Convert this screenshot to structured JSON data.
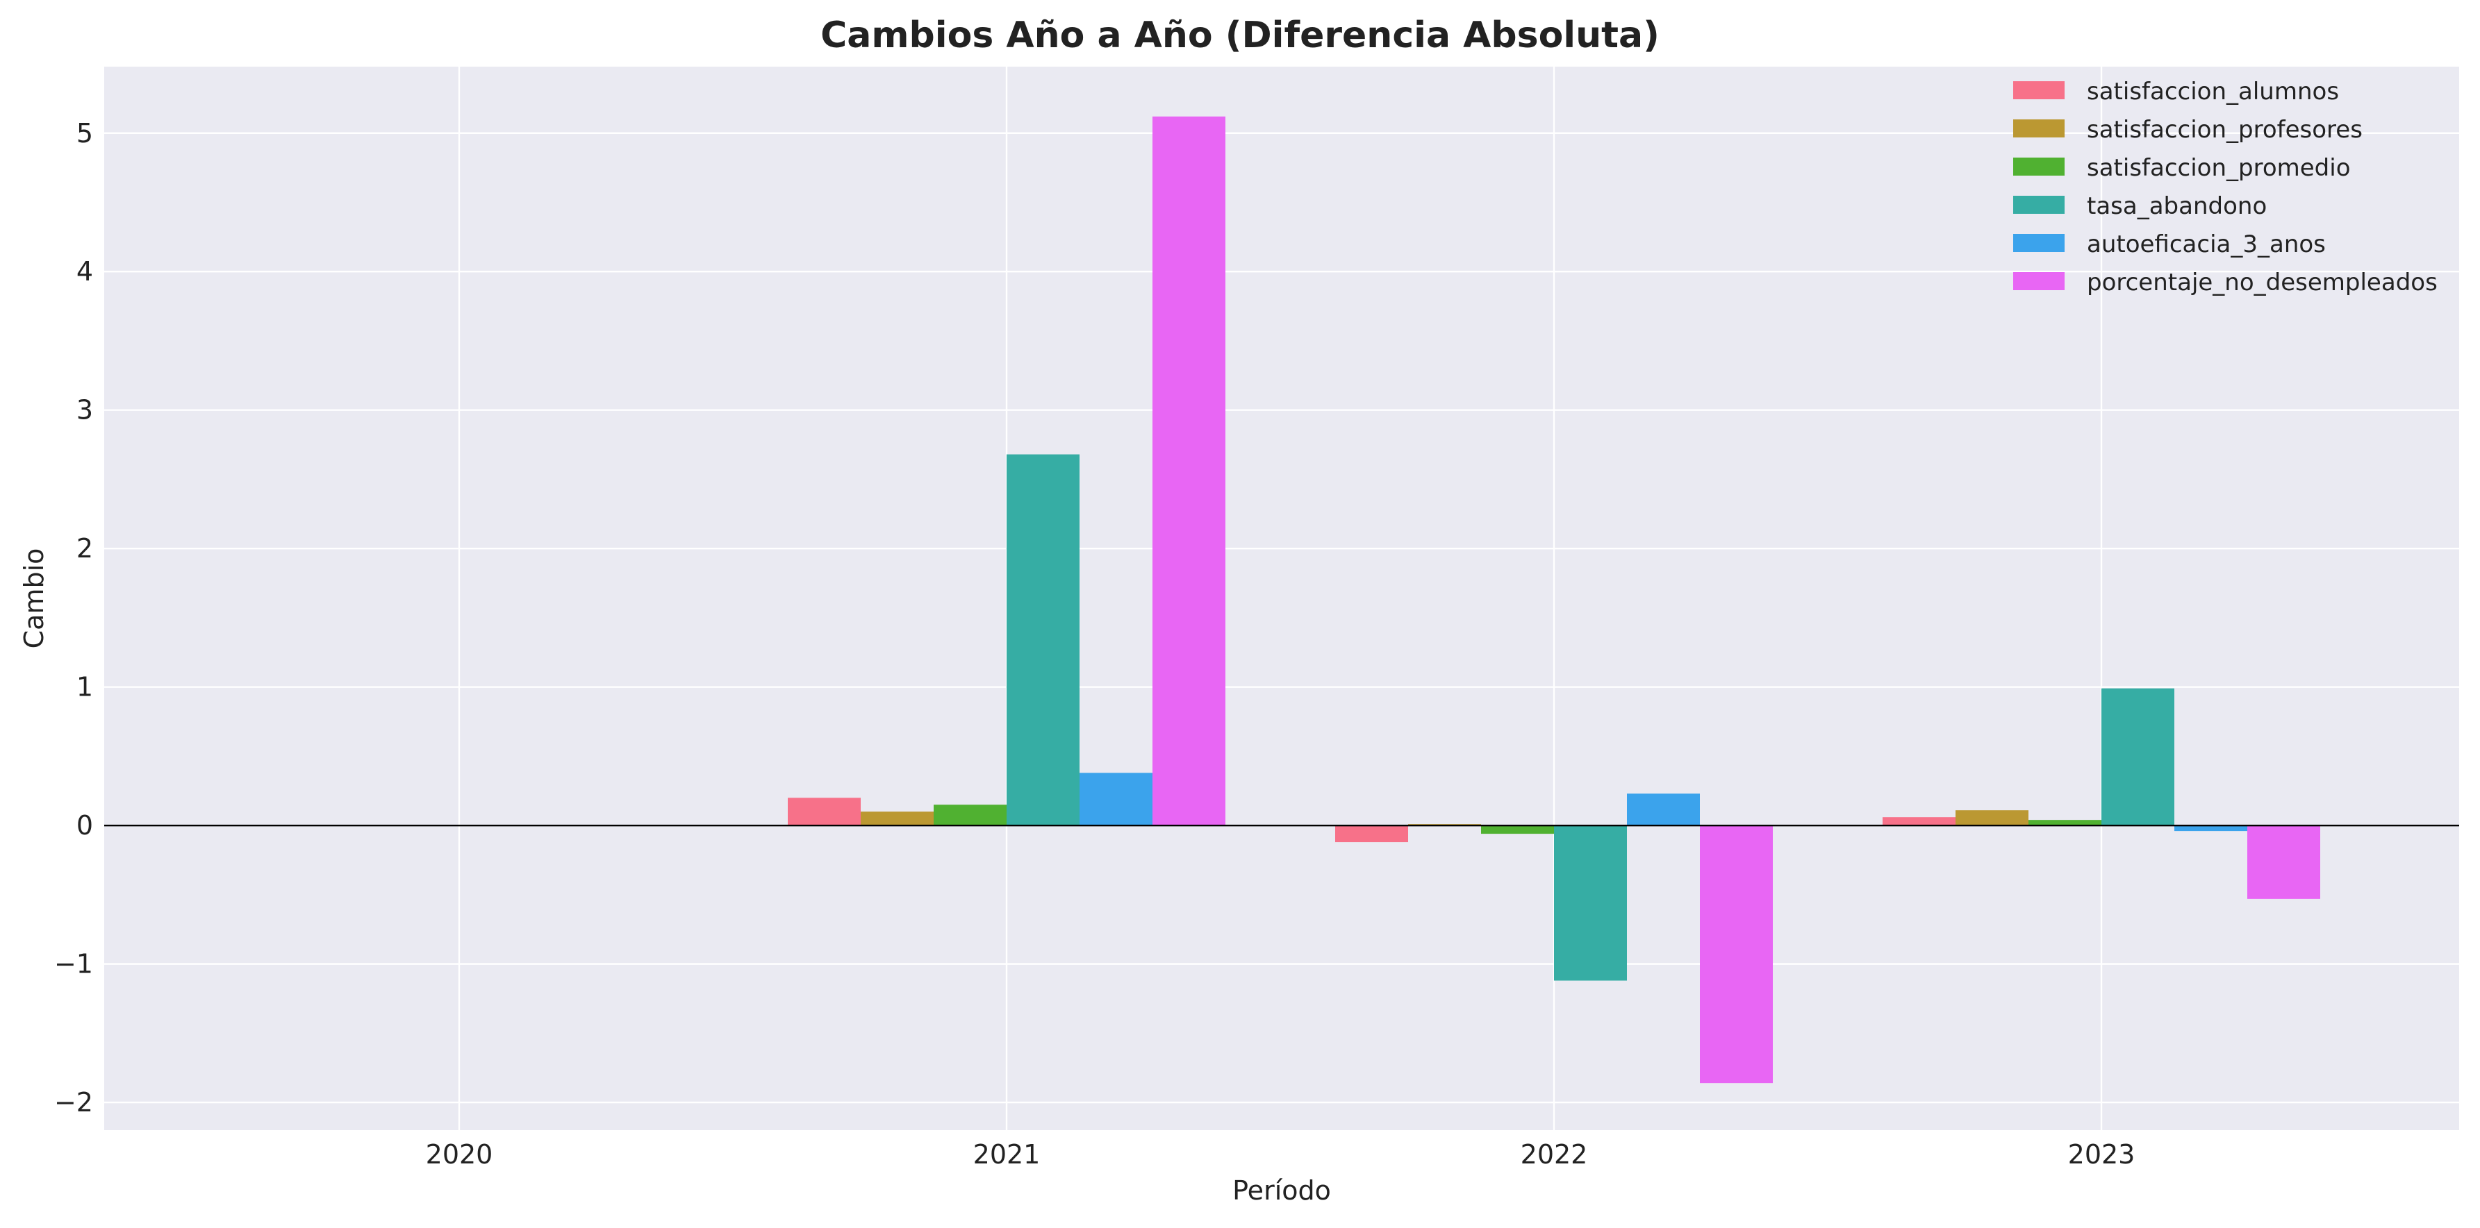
{
  "chart_data": {
    "type": "bar",
    "title": "Cambios Año a Año (Diferencia Absoluta)",
    "xlabel": "Período",
    "ylabel": "Cambio",
    "categories": [
      "2020",
      "2021",
      "2022",
      "2023"
    ],
    "ylim": [
      -2.2,
      5.48
    ],
    "yticks": [
      -2,
      -1,
      0,
      1,
      2,
      3,
      4,
      5
    ],
    "ytick_labels": [
      "−2",
      "−1",
      "0",
      "1",
      "2",
      "3",
      "4",
      "5"
    ],
    "grid": true,
    "zero_line": true,
    "legend_position": "top-right",
    "series": [
      {
        "name": "satisfaccion_alumnos",
        "color": "#f77189",
        "values": [
          0,
          0.2,
          -0.12,
          0.06
        ]
      },
      {
        "name": "satisfaccion_profesores",
        "color": "#bb9832",
        "values": [
          0,
          0.1,
          0.01,
          0.11
        ]
      },
      {
        "name": "satisfaccion_promedio",
        "color": "#50b131",
        "values": [
          0,
          0.15,
          -0.06,
          0.04
        ]
      },
      {
        "name": "tasa_abandono",
        "color": "#36ada4",
        "values": [
          0,
          2.68,
          -1.12,
          0.99
        ]
      },
      {
        "name": "autoeficacia_3_anos",
        "color": "#3ba3ec",
        "values": [
          0,
          0.38,
          0.23,
          -0.04
        ]
      },
      {
        "name": "porcentaje_no_desempleados",
        "color": "#e866f4",
        "values": [
          0,
          5.12,
          -1.86,
          -0.53
        ]
      }
    ]
  }
}
